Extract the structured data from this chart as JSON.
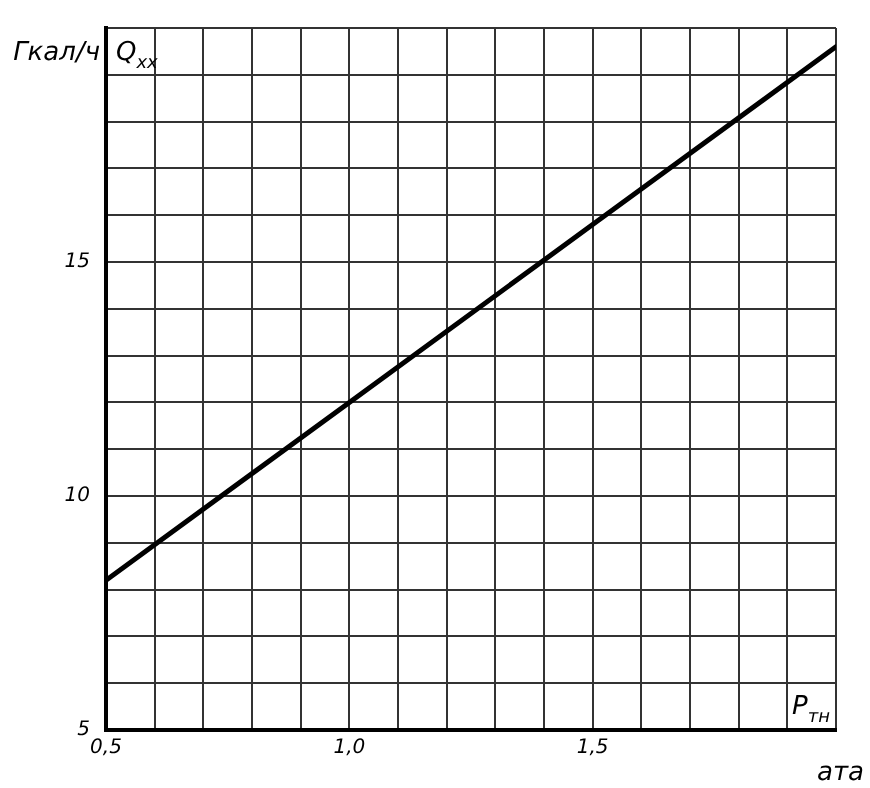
{
  "chart_data": {
    "type": "line",
    "ylabel": "Гкал/ч",
    "xlabel": "ата",
    "annotations": [
      "Q$_{хх}$",
      "P$_{тн}$"
    ],
    "x": [
      0.5,
      1.0,
      1.5,
      2.0
    ],
    "series": [
      {
        "color": "#000000",
        "values": [
          8.2,
          12.0,
          15.8,
          19.6
        ]
      }
    ],
    "xlim": [
      0.5,
      2.0
    ],
    "xticks": [
      {
        "value": 0.5,
        "label": "0,5"
      },
      {
        "value": 0.6,
        "label": null
      },
      {
        "value": 0.7,
        "label": null
      },
      {
        "value": 0.8,
        "label": null
      },
      {
        "value": 0.9,
        "label": null
      },
      {
        "value": 1.0,
        "label": "1,0"
      },
      {
        "value": 1.1,
        "label": null
      },
      {
        "value": 1.2,
        "label": null
      },
      {
        "value": 1.3,
        "label": null
      },
      {
        "value": 1.4,
        "label": null
      },
      {
        "value": 1.5,
        "label": "1,5"
      },
      {
        "value": 1.6,
        "label": null
      },
      {
        "value": 1.7,
        "label": null
      },
      {
        "value": 1.8,
        "label": null
      },
      {
        "value": 1.9,
        "label": null
      },
      {
        "value": 2.0,
        "label": null
      }
    ],
    "ylim": [
      5,
      20
    ],
    "yticks": [
      5,
      {
        "value": 6,
        "label": null
      },
      {
        "value": 7,
        "label": null
      },
      {
        "value": 8,
        "label": null
      },
      {
        "value": 9,
        "label": null
      },
      10,
      {
        "value": 11,
        "label": null
      },
      {
        "value": 12,
        "label": null
      },
      {
        "value": 13,
        "label": null
      },
      {
        "value": 14,
        "label": null
      },
      15,
      {
        "value": 16,
        "label": null
      },
      {
        "value": 17,
        "label": null
      },
      {
        "value": 18,
        "label": null
      },
      {
        "value": 19,
        "label": null
      },
      {
        "value": 20,
        "label": null
      }
    ],
    "grid": true,
    "legend": false,
    "marker": "none",
    "line_style": "solid"
  }
}
